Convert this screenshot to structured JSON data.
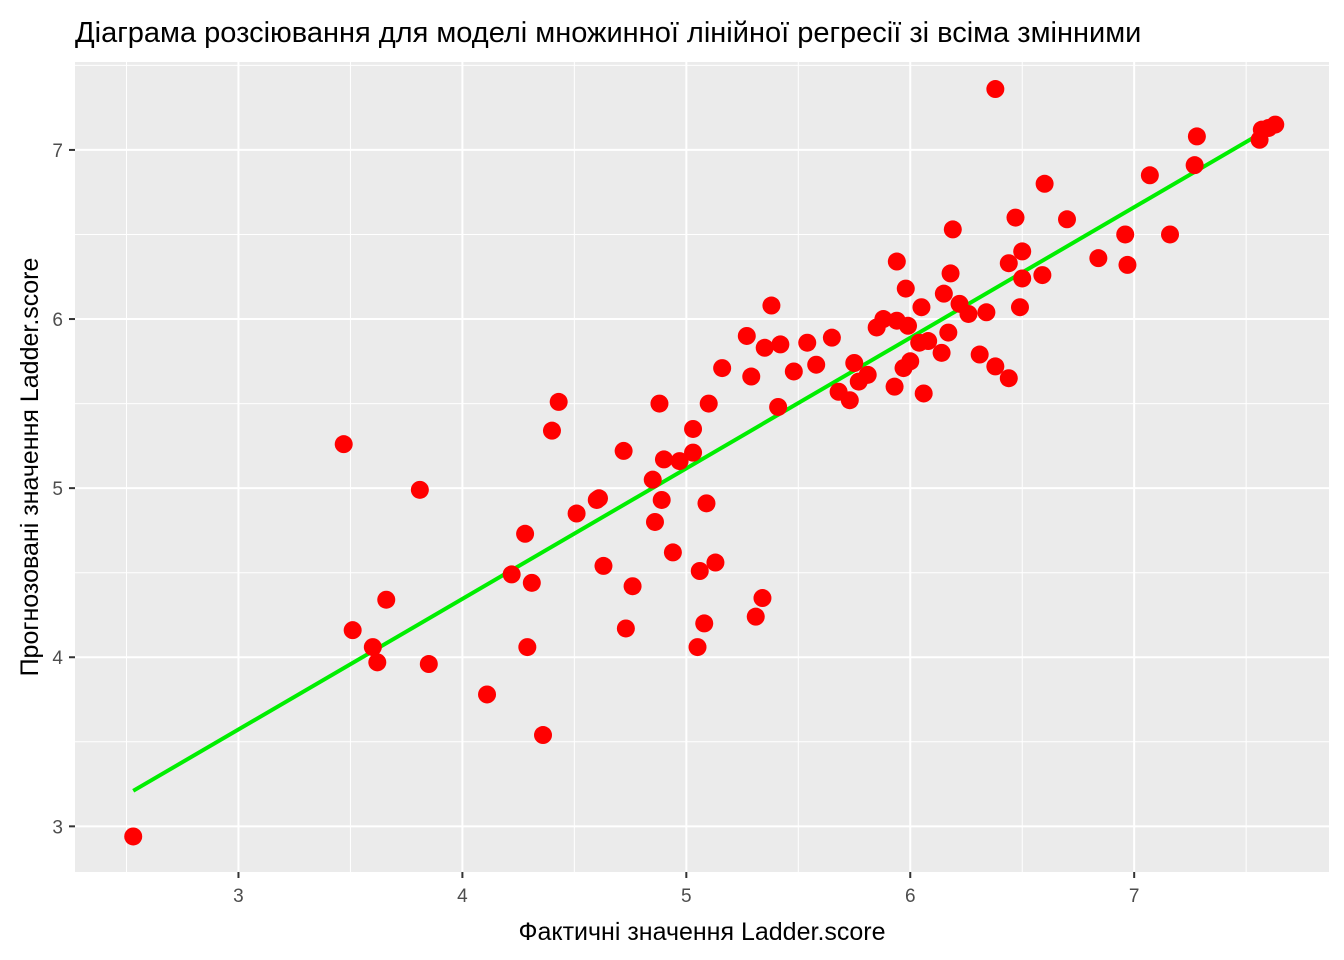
{
  "chart_data": {
    "type": "scatter",
    "title": "Діаграма розсіювання для моделі множинної лінійної регресії зі всіма змінними",
    "xlabel": "Фактичні значення Ladder.score",
    "ylabel": "Прогнозовані значення Ladder.score",
    "xlim": [
      2.27,
      7.87
    ],
    "ylim": [
      2.73,
      7.52
    ],
    "x_ticks": [
      3,
      4,
      5,
      6,
      7
    ],
    "y_ticks": [
      3,
      4,
      5,
      6,
      7
    ],
    "grid": true,
    "legend": "none",
    "colors": {
      "points": "#ff0000",
      "fit_line": "#00ee00",
      "panel": "#ebebeb",
      "grid": "#ffffff"
    },
    "fit_line": {
      "x": [
        2.53,
        7.62
      ],
      "y": [
        3.21,
        7.14
      ]
    },
    "points": [
      [
        2.53,
        2.94
      ],
      [
        3.47,
        5.26
      ],
      [
        3.51,
        4.16
      ],
      [
        3.6,
        4.06
      ],
      [
        3.62,
        3.97
      ],
      [
        3.66,
        4.34
      ],
      [
        3.81,
        4.99
      ],
      [
        3.85,
        3.96
      ],
      [
        4.11,
        3.78
      ],
      [
        4.22,
        4.49
      ],
      [
        4.28,
        4.73
      ],
      [
        4.29,
        4.06
      ],
      [
        4.31,
        4.44
      ],
      [
        4.36,
        3.54
      ],
      [
        4.4,
        5.34
      ],
      [
        4.43,
        5.51
      ],
      [
        4.51,
        4.85
      ],
      [
        4.6,
        4.93
      ],
      [
        4.61,
        4.94
      ],
      [
        4.63,
        4.54
      ],
      [
        4.72,
        5.22
      ],
      [
        4.73,
        4.17
      ],
      [
        4.76,
        4.42
      ],
      [
        4.85,
        5.05
      ],
      [
        4.86,
        4.8
      ],
      [
        4.88,
        5.5
      ],
      [
        4.89,
        4.93
      ],
      [
        4.9,
        5.17
      ],
      [
        4.94,
        4.62
      ],
      [
        4.97,
        5.16
      ],
      [
        5.03,
        5.35
      ],
      [
        5.03,
        5.21
      ],
      [
        5.05,
        4.06
      ],
      [
        5.06,
        4.51
      ],
      [
        5.08,
        4.2
      ],
      [
        5.09,
        4.91
      ],
      [
        5.1,
        5.5
      ],
      [
        5.13,
        4.56
      ],
      [
        5.16,
        5.71
      ],
      [
        5.27,
        5.9
      ],
      [
        5.29,
        5.66
      ],
      [
        5.31,
        4.24
      ],
      [
        5.34,
        4.35
      ],
      [
        5.35,
        5.83
      ],
      [
        5.38,
        6.08
      ],
      [
        5.41,
        5.48
      ],
      [
        5.42,
        5.85
      ],
      [
        5.48,
        5.69
      ],
      [
        5.54,
        5.86
      ],
      [
        5.58,
        5.73
      ],
      [
        5.65,
        5.89
      ],
      [
        5.68,
        5.57
      ],
      [
        5.73,
        5.52
      ],
      [
        5.75,
        5.74
      ],
      [
        5.77,
        5.63
      ],
      [
        5.81,
        5.67
      ],
      [
        5.85,
        5.95
      ],
      [
        5.88,
        6.0
      ],
      [
        5.93,
        5.6
      ],
      [
        5.94,
        5.99
      ],
      [
        5.94,
        6.34
      ],
      [
        5.97,
        5.71
      ],
      [
        5.98,
        6.18
      ],
      [
        5.99,
        5.96
      ],
      [
        6.0,
        5.75
      ],
      [
        6.04,
        5.86
      ],
      [
        6.05,
        6.07
      ],
      [
        6.06,
        5.56
      ],
      [
        6.08,
        5.87
      ],
      [
        6.14,
        5.8
      ],
      [
        6.15,
        6.15
      ],
      [
        6.17,
        5.92
      ],
      [
        6.18,
        6.27
      ],
      [
        6.19,
        6.53
      ],
      [
        6.22,
        6.09
      ],
      [
        6.26,
        6.03
      ],
      [
        6.31,
        5.79
      ],
      [
        6.34,
        6.04
      ],
      [
        6.38,
        5.72
      ],
      [
        6.38,
        7.36
      ],
      [
        6.44,
        6.33
      ],
      [
        6.44,
        5.65
      ],
      [
        6.47,
        6.6
      ],
      [
        6.49,
        6.07
      ],
      [
        6.5,
        6.4
      ],
      [
        6.5,
        6.24
      ],
      [
        6.59,
        6.26
      ],
      [
        6.6,
        6.8
      ],
      [
        6.7,
        6.59
      ],
      [
        6.84,
        6.36
      ],
      [
        6.96,
        6.5
      ],
      [
        6.97,
        6.32
      ],
      [
        7.07,
        6.85
      ],
      [
        7.16,
        6.5
      ],
      [
        7.27,
        6.91
      ],
      [
        7.28,
        7.08
      ],
      [
        7.56,
        7.06
      ],
      [
        7.57,
        7.12
      ],
      [
        7.6,
        7.13
      ],
      [
        7.63,
        7.15
      ]
    ]
  }
}
